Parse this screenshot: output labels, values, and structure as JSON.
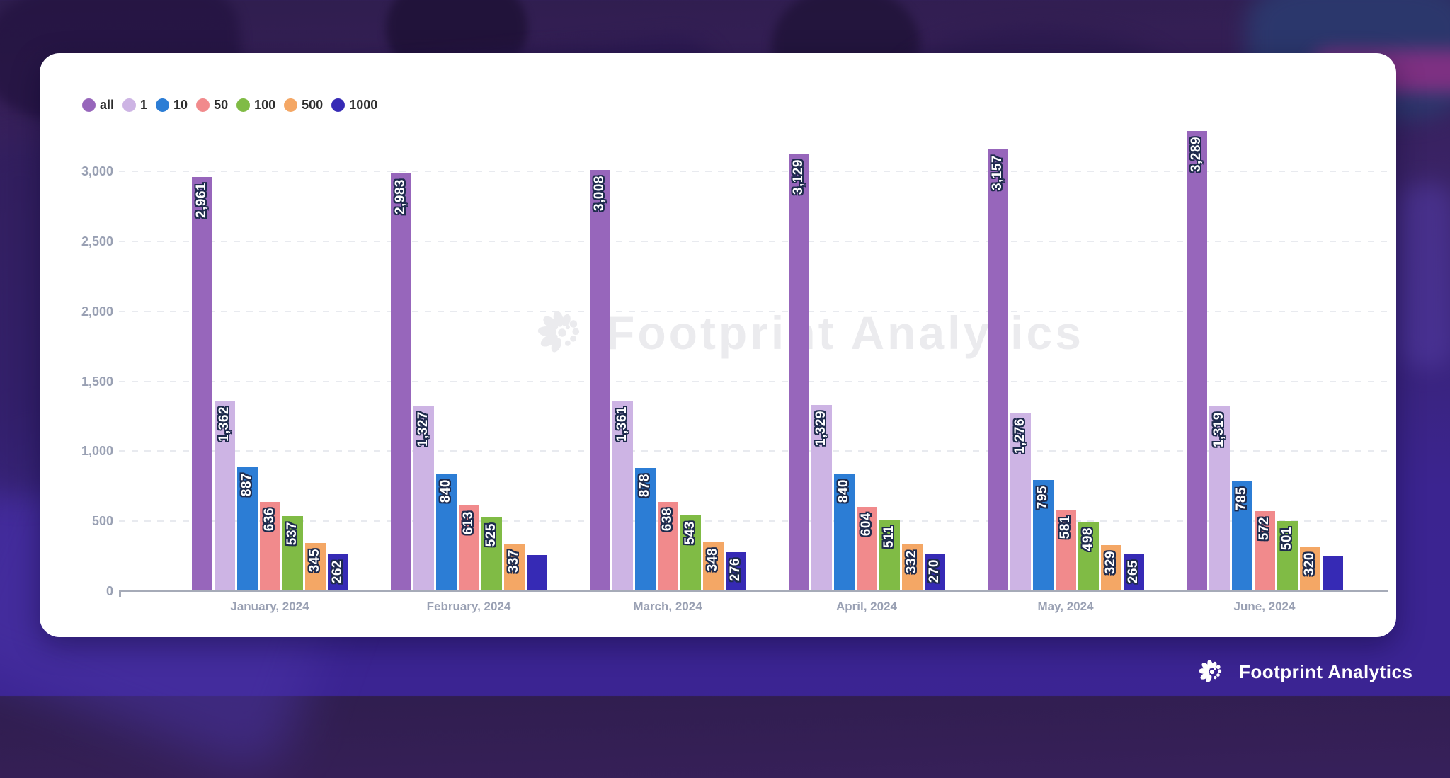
{
  "watermark": {
    "text": "Footprint Analytics"
  },
  "footer": {
    "brand": "Footprint Analytics"
  },
  "style_colors": {
    "card_background": "#FFFFFF",
    "page_background_bottom": "#3B2493",
    "axis_label": "#99A0B3",
    "axis_line": "#A6ABB8",
    "gridline": "#E8EAEF",
    "value_label_fill": "#FFFFFF",
    "value_label_outline": "#1E2B4D",
    "watermark_gray": "#EBEBEE"
  },
  "chart_data": {
    "type": "bar",
    "title": "",
    "xlabel": "",
    "ylabel": "",
    "categories": [
      "January, 2024",
      "February, 2024",
      "March, 2024",
      "April, 2024",
      "May, 2024",
      "June, 2024"
    ],
    "series": [
      {
        "name": "all",
        "color": "#9766BB",
        "values": [
          2961,
          2983,
          3008,
          3129,
          3157,
          3289
        ],
        "labels": [
          "2,961",
          "2,983",
          "3,008",
          "3,129",
          "3,157",
          "3,289"
        ]
      },
      {
        "name": "1",
        "color": "#CDB4E4",
        "values": [
          1362,
          1327,
          1361,
          1329,
          1276,
          1319
        ],
        "labels": [
          "1,362",
          "1,327",
          "1,361",
          "1,329",
          "1,276",
          "1,319"
        ]
      },
      {
        "name": "10",
        "color": "#2C7DD5",
        "values": [
          887,
          840,
          878,
          840,
          795,
          785
        ],
        "labels": [
          "887",
          "840",
          "878",
          "840",
          "795",
          "785"
        ]
      },
      {
        "name": "50",
        "color": "#F18A8C",
        "values": [
          636,
          613,
          638,
          604,
          581,
          572
        ],
        "labels": [
          "636",
          "613",
          "638",
          "604",
          "581",
          "572"
        ]
      },
      {
        "name": "100",
        "color": "#80BB45",
        "values": [
          537,
          525,
          543,
          511,
          498,
          501
        ],
        "labels": [
          "537",
          "525",
          "543",
          "511",
          "498",
          "501"
        ]
      },
      {
        "name": "500",
        "color": "#F4A765",
        "values": [
          345,
          337,
          348,
          332,
          329,
          320
        ],
        "labels": [
          "345",
          "337",
          "348",
          "332",
          "329",
          "320"
        ]
      },
      {
        "name": "1000",
        "color": "#362AB5",
        "values": [
          262,
          258,
          276,
          270,
          265,
          255
        ],
        "labels": [
          "262",
          "",
          "276",
          "270",
          "265",
          ""
        ]
      }
    ],
    "ylim": [
      0,
      3314
    ],
    "yticks": [
      {
        "value": 0,
        "label": "0"
      },
      {
        "value": 500,
        "label": "500"
      },
      {
        "value": 1000,
        "label": "1,000"
      },
      {
        "value": 1500,
        "label": "1,500"
      },
      {
        "value": 2000,
        "label": "2,000"
      },
      {
        "value": 2500,
        "label": "2,500"
      },
      {
        "value": 3000,
        "label": "3,000"
      }
    ],
    "grid": "horizontal dashed",
    "legend_position": "top-left",
    "value_label_style": "rotated 90deg, white with dark outline, inside bar top",
    "note": "February and June '1000' bars are rendered without data labels; their values are estimated from bar heights"
  }
}
